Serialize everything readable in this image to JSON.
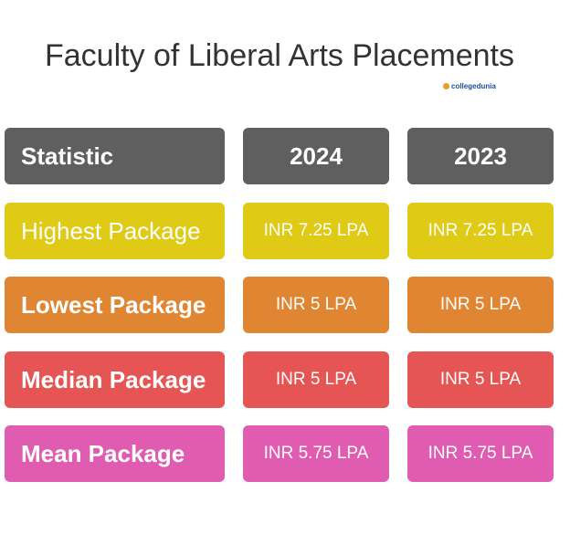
{
  "header": {
    "title": "Faculty of Liberal Arts Placements",
    "watermark": "collegedunia"
  },
  "table": {
    "columns": [
      "Statistic",
      "2024",
      "2023"
    ],
    "rows": [
      [
        "Highest Package",
        "INR 7.25 LPA",
        "INR 7.25 LPA"
      ],
      [
        "Lowest Package",
        "INR 5 LPA",
        "INR 5 LPA"
      ],
      [
        "Median Package",
        "INR 5 LPA",
        "INR 5 LPA"
      ],
      [
        "Mean Package",
        "INR 5.75 LPA",
        "INR 5.75 LPA"
      ]
    ]
  }
}
